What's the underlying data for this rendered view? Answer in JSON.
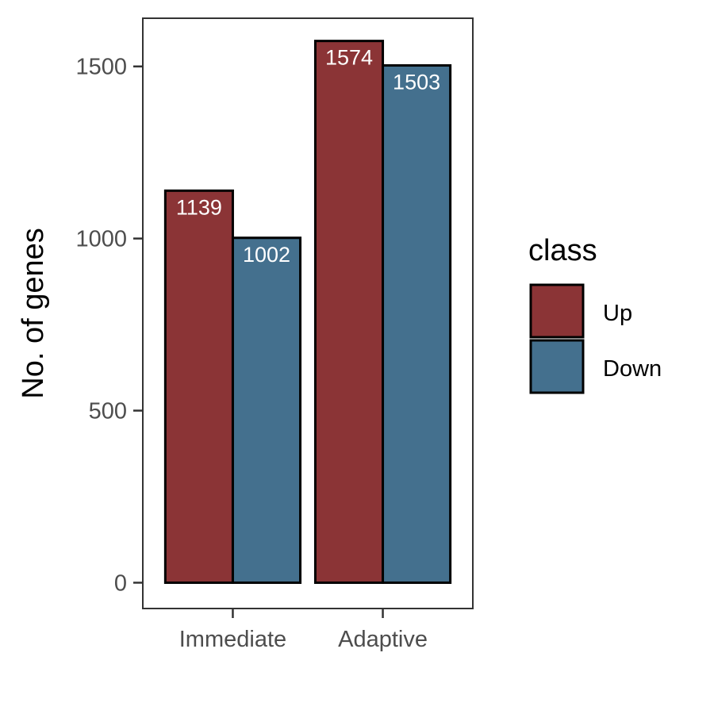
{
  "chart_data": {
    "type": "bar",
    "categories": [
      "Immediate",
      "Adaptive"
    ],
    "series": [
      {
        "name": "Up",
        "values": [
          1139,
          1574
        ],
        "color": "#8B3436"
      },
      {
        "name": "Down",
        "values": [
          1002,
          1503
        ],
        "color": "#44708E"
      }
    ],
    "ylabel": "No. of genes",
    "xlabel": "",
    "ylim": [
      -75,
      1640
    ],
    "yticks": [
      0,
      500,
      1000,
      1500
    ],
    "grid": false,
    "legend": {
      "title": "class",
      "placement": "right"
    },
    "data_labels": true
  }
}
